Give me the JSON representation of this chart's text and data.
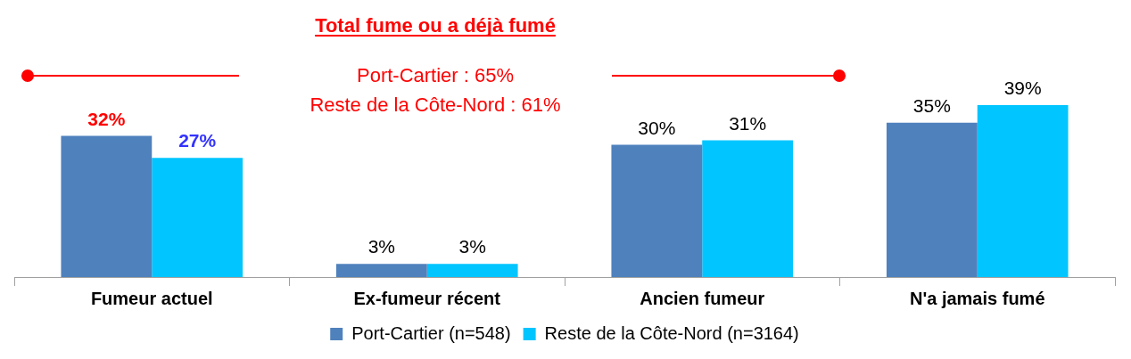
{
  "chart_data": {
    "type": "bar",
    "title": "Total fume ou a déjà fumé",
    "annotations": [
      "Port-Cartier : 65%",
      "Reste de la Côte-Nord : 61%"
    ],
    "categories": [
      "Fumeur actuel",
      "Ex-fumeur récent",
      "Ancien fumeur",
      "N'a jamais fumé"
    ],
    "series": [
      {
        "name": "Port-Cartier (n=548)",
        "color": "#4f81bd",
        "values": [
          32,
          3,
          30,
          35
        ],
        "value_labels": [
          "32%",
          "3%",
          "30%",
          "35%"
        ]
      },
      {
        "name": "Reste de la Côte-Nord (n=3164)",
        "color": "#00c5ff",
        "values": [
          27,
          3,
          31,
          39
        ],
        "value_labels": [
          "27%",
          "3%",
          "31%",
          "39%"
        ]
      }
    ],
    "legend": "bottom",
    "grid": false
  }
}
